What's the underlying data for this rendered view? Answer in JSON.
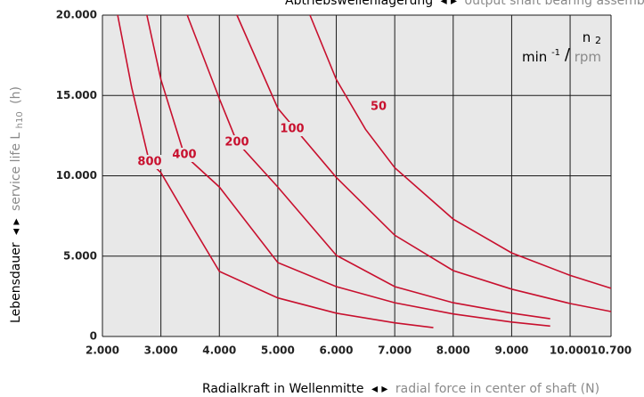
{
  "chart_data": {
    "type": "line",
    "title": {
      "de": "Abtriebswellenlagerung",
      "sep": "◂ ▸",
      "en": "output shaft bearing assembly"
    },
    "x_label": {
      "de": "Radialkraft in Wellenmitte",
      "sep": "◂ ▸",
      "en": "radial force in center of shaft (N)"
    },
    "y_label": {
      "de": "Lebensdauer",
      "sep": "◂ ▸",
      "en": "service life L",
      "sub": "h10",
      "unit": "(h)"
    },
    "legend": {
      "symbol": "n",
      "symbol_sub": "2",
      "unit": "min",
      "unit_exp": "-1",
      "slash": "/",
      "unit_en": "rpm"
    },
    "xlim": [
      2000,
      10700
    ],
    "ylim": [
      0,
      20000
    ],
    "xticks": [
      {
        "value": 2000,
        "label": "2.000"
      },
      {
        "value": 3000,
        "label": "3.000"
      },
      {
        "value": 4000,
        "label": "4.000"
      },
      {
        "value": 5000,
        "label": "5.000"
      },
      {
        "value": 6000,
        "label": "6.000"
      },
      {
        "value": 7000,
        "label": "7.000"
      },
      {
        "value": 8000,
        "label": "8.000"
      },
      {
        "value": 9000,
        "label": "9.000"
      },
      {
        "value": 10000,
        "label": "10.000"
      },
      {
        "value": 10700,
        "label": "10.700"
      }
    ],
    "yticks": [
      0,
      {
        "value": 5000,
        "label": "5.000"
      },
      {
        "value": 10000,
        "label": "10.000"
      },
      {
        "value": 15000,
        "label": "15.000"
      },
      {
        "value": 20000,
        "label": "20.000"
      }
    ],
    "grid": true,
    "series": [
      {
        "name": "50",
        "color": "#c8102e",
        "x": [
          5550,
          6000,
          6500,
          7000,
          8000,
          9000,
          10000,
          10700
        ],
        "values": [
          20000,
          16000,
          12900,
          10500,
          7300,
          5200,
          3800,
          3000
        ]
      },
      {
        "name": "100",
        "color": "#c8102e",
        "x": [
          4300,
          5000,
          6000,
          7000,
          8000,
          9000,
          10000,
          10700
        ],
        "values": [
          20000,
          14200,
          9900,
          6300,
          4100,
          2950,
          2050,
          1550
        ]
      },
      {
        "name": "200",
        "color": "#c8102e",
        "x": [
          3450,
          4000,
          4300,
          5000,
          6000,
          7000,
          8000,
          9000,
          9660
        ],
        "values": [
          20000,
          14800,
          12100,
          9300,
          5050,
          3100,
          2100,
          1450,
          1100
        ]
      },
      {
        "name": "400",
        "color": "#c8102e",
        "x": [
          2760,
          3000,
          3400,
          4000,
          5000,
          6000,
          7000,
          8000,
          9000,
          9660
        ],
        "values": [
          20000,
          16000,
          11300,
          9300,
          4600,
          3100,
          2100,
          1400,
          900,
          650
        ]
      },
      {
        "name": "800",
        "color": "#c8102e",
        "x": [
          2260,
          2500,
          2800,
          3000,
          3500,
          4000,
          5000,
          6000,
          7000,
          7660
        ],
        "values": [
          20000,
          15500,
          10900,
          10200,
          7100,
          4050,
          2400,
          1450,
          850,
          550
        ]
      }
    ]
  }
}
